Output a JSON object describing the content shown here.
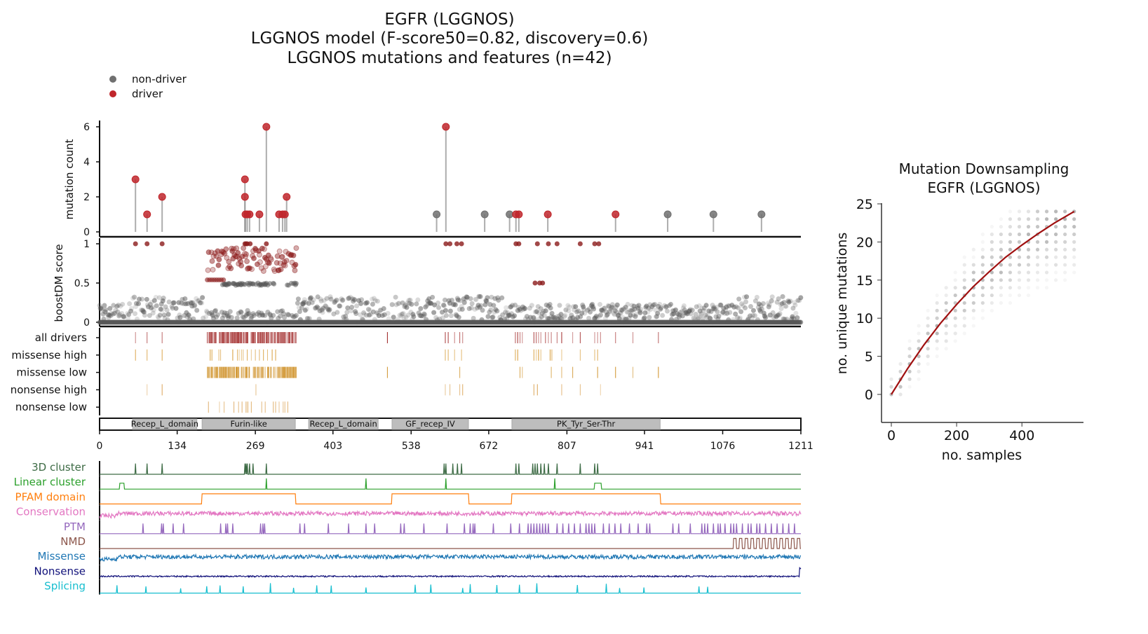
{
  "chart_data": [
    {
      "type": "lollipop",
      "title": [
        "EGFR (LGGNOS)",
        "LGGNOS model (F-score50=0.82, discovery=0.6)",
        "LGGNOS mutations and features (n=42)"
      ],
      "legend": {
        "placement": "top-left",
        "entries": [
          {
            "label": "non-driver",
            "color": "#707070"
          },
          {
            "label": "driver",
            "color": "#c0262b"
          }
        ]
      },
      "ylabel": "mutation count",
      "ylim": [
        0,
        6.4
      ],
      "yticks": [
        "0",
        "2",
        "4",
        "6"
      ],
      "xlim": [
        0,
        1211
      ],
      "points": [
        {
          "pos": 62,
          "count": 3,
          "driver": true
        },
        {
          "pos": 82,
          "count": 1,
          "driver": true
        },
        {
          "pos": 108,
          "count": 2,
          "driver": true
        },
        {
          "pos": 251,
          "count": 3,
          "driver": true
        },
        {
          "pos": 251,
          "count": 2,
          "driver": true
        },
        {
          "pos": 252,
          "count": 1,
          "driver": true
        },
        {
          "pos": 255,
          "count": 1,
          "driver": true
        },
        {
          "pos": 259,
          "count": 1,
          "driver": true
        },
        {
          "pos": 276,
          "count": 1,
          "driver": true
        },
        {
          "pos": 288,
          "count": 6,
          "driver": true
        },
        {
          "pos": 310,
          "count": 1,
          "driver": true
        },
        {
          "pos": 316,
          "count": 1,
          "driver": true
        },
        {
          "pos": 320,
          "count": 1,
          "driver": true
        },
        {
          "pos": 323,
          "count": 2,
          "driver": true
        },
        {
          "pos": 582,
          "count": 1,
          "driver": false
        },
        {
          "pos": 598,
          "count": 6,
          "driver": true
        },
        {
          "pos": 665,
          "count": 1,
          "driver": false
        },
        {
          "pos": 708,
          "count": 1,
          "driver": false
        },
        {
          "pos": 719,
          "count": 1,
          "driver": true
        },
        {
          "pos": 724,
          "count": 1,
          "driver": true
        },
        {
          "pos": 774,
          "count": 1,
          "driver": true
        },
        {
          "pos": 891,
          "count": 1,
          "driver": true
        },
        {
          "pos": 981,
          "count": 1,
          "driver": false
        },
        {
          "pos": 1060,
          "count": 1,
          "driver": false
        },
        {
          "pos": 1143,
          "count": 1,
          "driver": false
        }
      ]
    },
    {
      "type": "scatter",
      "ylabel": "boostDM score",
      "ylim": [
        0,
        1
      ],
      "yticks": [
        "0",
        "0.5",
        "1"
      ],
      "driver_color": "#8b1a1a",
      "nondriver_color": "#555555",
      "driver_region_high": [
        186,
        340
      ],
      "driver_singletons": [
        62,
        82,
        108,
        251,
        253,
        255,
        260,
        288,
        598,
        605,
        617,
        625,
        719,
        724,
        752,
        756,
        760,
        765,
        775,
        790,
        830,
        855,
        862
      ]
    },
    {
      "type": "rug",
      "rows": [
        {
          "label": "all drivers",
          "color": "#9b1c1c",
          "sites": [
            62,
            82,
            108,
            497,
            597,
            602,
            613,
            622,
            627,
            718,
            722,
            726,
            730,
            750,
            754,
            758,
            762,
            770,
            775,
            780,
            790,
            798,
            817,
            830,
            855,
            860,
            865,
            891,
            921,
            965
          ],
          "dense": [
            [
              186,
              340
            ]
          ]
        },
        {
          "label": "missense high",
          "color": "#d4952a",
          "sites": [
            62,
            82,
            108,
            191,
            194,
            206,
            209,
            230,
            238,
            241,
            245,
            248,
            255,
            262,
            269,
            276,
            283,
            290,
            298,
            304,
            597,
            602,
            613,
            625,
            718,
            722,
            750,
            754,
            758,
            762,
            778,
            781,
            798,
            830,
            855,
            860
          ],
          "dense": []
        },
        {
          "label": "missense low",
          "color": "#cc8a1a",
          "sites": [
            497,
            622,
            726,
            730,
            780,
            798,
            817,
            860,
            891,
            921,
            965
          ],
          "dense": [
            [
              186,
              340
            ]
          ]
        },
        {
          "label": "nonsense high",
          "color": "#d9a050",
          "sites": [
            82,
            108,
            270,
            597,
            605,
            622,
            627,
            750,
            756,
            798,
            830,
            865
          ],
          "dense": []
        },
        {
          "label": "nonsense low",
          "color": "#d9a050",
          "sites": [
            188,
            207,
            215,
            232,
            240,
            246,
            253,
            256,
            262,
            280,
            286,
            300,
            304,
            310,
            317,
            320,
            325
          ],
          "dense": []
        }
      ]
    },
    {
      "type": "domains",
      "xticks": [
        "0",
        "134",
        "269",
        "403",
        "538",
        "672",
        "807",
        "941",
        "1076",
        "1211"
      ],
      "domains": [
        {
          "name": "Recep_L_domain",
          "start": 57,
          "end": 168
        },
        {
          "name": "Furin-like",
          "start": 177,
          "end": 338
        },
        {
          "name": "Recep_L_domain",
          "start": 361,
          "end": 481
        },
        {
          "name": "GF_recep_IV",
          "start": 505,
          "end": 637
        },
        {
          "name": "PK_Tyr_Ser-Thr",
          "start": 712,
          "end": 968
        }
      ]
    },
    {
      "type": "tracks",
      "tracks": [
        {
          "label": "3D cluster",
          "color": "#3d6b45",
          "kind": "spikes",
          "sites": [
            62,
            82,
            108,
            251,
            253,
            255,
            259,
            265,
            288,
            595,
            598,
            610,
            618,
            625,
            719,
            724,
            748,
            752,
            756,
            762,
            768,
            775,
            790,
            830,
            855,
            860
          ]
        },
        {
          "label": "Linear cluster",
          "color": "#2ca02c",
          "kind": "spikes",
          "sites": [
            288,
            460,
            598,
            786
          ],
          "plateaus": [
            [
              35,
              42
            ],
            [
              855,
              866
            ]
          ]
        },
        {
          "label": "PFAM domain",
          "color": "#ff7f0e",
          "kind": "step"
        },
        {
          "label": "Conservation",
          "color": "#e377c2",
          "kind": "noise"
        },
        {
          "label": "PTM",
          "color": "#9467bd",
          "kind": "spikes",
          "sites": [
            75,
            107,
            110,
            127,
            145,
            209,
            218,
            221,
            230,
            278,
            282,
            285,
            346,
            354,
            395,
            430,
            460,
            475,
            520,
            526,
            560,
            600,
            630,
            640,
            645,
            648,
            680,
            710,
            725,
            740,
            745,
            750,
            755,
            760,
            765,
            770,
            775,
            790,
            800,
            810,
            820,
            830,
            840,
            845,
            850,
            855,
            870,
            880,
            890,
            900,
            915,
            930,
            945,
            950,
            990,
            1000,
            1020,
            1040,
            1045,
            1050,
            1060,
            1068,
            1072,
            1080,
            1090,
            1095,
            1100,
            1110,
            1120,
            1125,
            1135,
            1140,
            1150,
            1160,
            1170,
            1180,
            1190,
            1200
          ]
        },
        {
          "label": "NMD",
          "color": "#8c564b",
          "kind": "nmd",
          "from": 1090
        },
        {
          "label": "Missense",
          "color": "#1f77b4",
          "kind": "noise"
        },
        {
          "label": "Nonsense",
          "color": "#10107a",
          "kind": "lownoise"
        },
        {
          "label": "Splicing",
          "color": "#17becf",
          "kind": "spikes",
          "sites": [
            30,
            80,
            140,
            185,
            208,
            248,
            295,
            335,
            375,
            400,
            460,
            545,
            572,
            627,
            640,
            686,
            725,
            755,
            825,
            875,
            898,
            940,
            1035,
            1050
          ]
        }
      ]
    },
    {
      "type": "scatter+line",
      "title": [
        "Mutation Downsampling",
        "EGFR (LGGNOS)"
      ],
      "xlabel": "no. samples",
      "ylabel": "no. unique mutations",
      "xlim": [
        -20,
        580
      ],
      "ylim": [
        -1,
        25.5
      ],
      "xticks": [
        "0",
        "200",
        "400"
      ],
      "yticks": [
        "0",
        "5",
        "10",
        "15",
        "20",
        "25"
      ],
      "line_color": "#a01010",
      "fit": {
        "x": [
          0,
          50,
          100,
          150,
          200,
          250,
          300,
          350,
          400,
          450,
          500,
          560
        ],
        "y": [
          0,
          3.4,
          6.5,
          9.3,
          11.8,
          14.1,
          16.1,
          18.0,
          19.6,
          21.1,
          22.5,
          24
        ]
      }
    }
  ]
}
